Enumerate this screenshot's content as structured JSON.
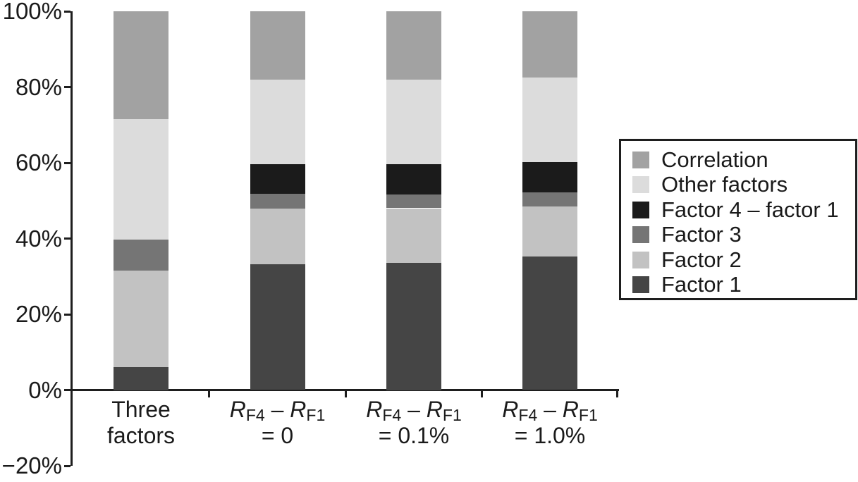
{
  "figure": {
    "background_color": "#ffffff",
    "axis_color": "#1e1e1e",
    "text_color": "#1a1a1a"
  },
  "chart_data": {
    "type": "bar",
    "stacked": true,
    "title": "",
    "xlabel": "",
    "ylabel": "",
    "ylim": [
      -20,
      100
    ],
    "grid": false,
    "yticks": [
      {
        "value": 100,
        "label": "100%"
      },
      {
        "value": 80,
        "label": "80%"
      },
      {
        "value": 60,
        "label": "60%"
      },
      {
        "value": 40,
        "label": "40%"
      },
      {
        "value": 20,
        "label": "20%"
      },
      {
        "value": 0,
        "label": "0%"
      },
      {
        "value": -20,
        "label": "−20%"
      }
    ],
    "categories": [
      {
        "plain": "Three factors",
        "lines": [
          [
            {
              "t": "Three"
            }
          ],
          [
            {
              "t": "factors"
            }
          ]
        ]
      },
      {
        "plain": "R_F4 – R_F1 = 0",
        "lines": [
          [
            {
              "t": "R",
              "s": "i"
            },
            {
              "t": "F4",
              "s": "sub"
            },
            {
              "t": " – "
            },
            {
              "t": "R",
              "s": "i"
            },
            {
              "t": "F1",
              "s": "sub"
            }
          ],
          [
            {
              "t": "= 0"
            }
          ]
        ]
      },
      {
        "plain": "R_F4 – R_F1 = 0.1%",
        "lines": [
          [
            {
              "t": "R",
              "s": "i"
            },
            {
              "t": "F4",
              "s": "sub"
            },
            {
              "t": " – "
            },
            {
              "t": "R",
              "s": "i"
            },
            {
              "t": "F1",
              "s": "sub"
            }
          ],
          [
            {
              "t": "= 0.1%"
            }
          ]
        ]
      },
      {
        "plain": "R_F4 – R_F1 = 1.0%",
        "lines": [
          [
            {
              "t": "R",
              "s": "i"
            },
            {
              "t": "F4",
              "s": "sub"
            },
            {
              "t": " – "
            },
            {
              "t": "R",
              "s": "i"
            },
            {
              "t": "F1",
              "s": "sub"
            }
          ],
          [
            {
              "t": "= 1.0%"
            }
          ]
        ]
      }
    ],
    "series": [
      {
        "name": "Factor 1",
        "color": "#454545",
        "values": [
          6.0,
          33.3,
          33.5,
          35.2
        ]
      },
      {
        "name": "Factor 2",
        "color": "#c2c2c2",
        "values": [
          25.6,
          14.6,
          14.5,
          13.2
        ]
      },
      {
        "name": "Factor 3",
        "color": "#757575",
        "values": [
          8.2,
          3.9,
          3.6,
          3.7
        ]
      },
      {
        "name": "Factor 4 – factor 1",
        "color": "#1b1b1b",
        "values": [
          0.0,
          7.8,
          8.0,
          8.1
        ]
      },
      {
        "name": "Other factors",
        "color": "#dcdcdc",
        "values": [
          31.7,
          22.4,
          22.4,
          22.3
        ]
      },
      {
        "name": "Correlation",
        "color": "#a2a2a2",
        "values": [
          28.5,
          18.0,
          18.0,
          17.5
        ]
      }
    ],
    "legend": {
      "position": "right",
      "entries": [
        "Correlation",
        "Other factors",
        "Factor 4 – factor 1",
        "Factor 3",
        "Factor 2",
        "Factor 1"
      ]
    }
  }
}
